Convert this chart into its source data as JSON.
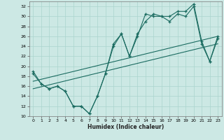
{
  "xlabel": "Humidex (Indice chaleur)",
  "bg_color": "#cce8e4",
  "grid_color": "#aad4ce",
  "line_color": "#1a6b60",
  "xlim": [
    -0.5,
    23.5
  ],
  "ylim": [
    10,
    33
  ],
  "xticks": [
    0,
    1,
    2,
    3,
    4,
    5,
    6,
    7,
    8,
    9,
    10,
    11,
    12,
    13,
    14,
    15,
    16,
    17,
    18,
    19,
    20,
    21,
    22,
    23
  ],
  "yticks": [
    10,
    12,
    14,
    16,
    18,
    20,
    22,
    24,
    26,
    28,
    30,
    32
  ],
  "series1_x": [
    0,
    1,
    2,
    3,
    4,
    5,
    6,
    7,
    8,
    9,
    10,
    11,
    12,
    13,
    14,
    15,
    16,
    17,
    18,
    19,
    20,
    21,
    22,
    23
  ],
  "series1_y": [
    19.0,
    16.5,
    15.5,
    16.0,
    15.0,
    12.0,
    12.0,
    10.5,
    14.0,
    18.5,
    24.5,
    26.5,
    22.0,
    26.5,
    29.0,
    30.5,
    30.0,
    30.0,
    31.0,
    31.0,
    32.5,
    25.0,
    21.0,
    26.0
  ],
  "series2_x": [
    0,
    1,
    2,
    3,
    4,
    5,
    6,
    7,
    8,
    9,
    10,
    11,
    12,
    13,
    14,
    15,
    16,
    17,
    18,
    19,
    20,
    21,
    22,
    23
  ],
  "series2_y": [
    18.5,
    16.5,
    15.5,
    16.0,
    15.0,
    12.0,
    12.0,
    10.5,
    14.0,
    18.5,
    24.0,
    26.5,
    22.0,
    26.0,
    30.5,
    30.0,
    30.0,
    29.0,
    30.5,
    30.0,
    32.0,
    24.5,
    21.0,
    25.5
  ],
  "series3_x": [
    0,
    23
  ],
  "series3_y": [
    15.5,
    24.5
  ],
  "series4_x": [
    0,
    23
  ],
  "series4_y": [
    17.0,
    26.0
  ]
}
